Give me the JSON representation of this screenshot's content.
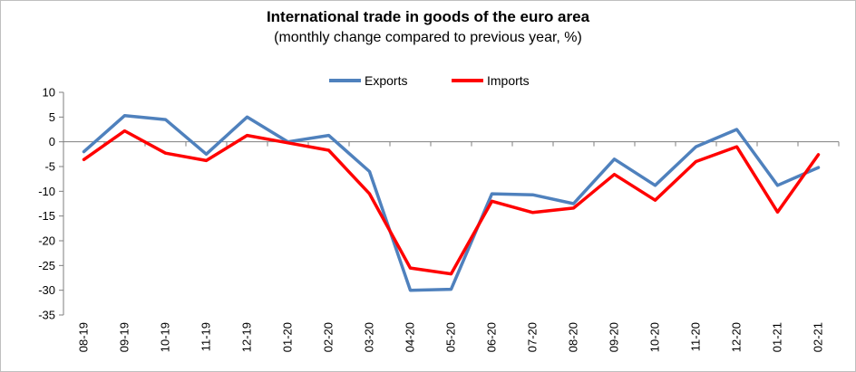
{
  "chart_data": {
    "type": "line",
    "title": "International trade in goods of the euro area",
    "subtitle": "(monthly change compared to previous year, %)",
    "xlabel": "",
    "ylabel": "",
    "categories": [
      "08-19",
      "09-19",
      "10-19",
      "11-19",
      "12-19",
      "01-20",
      "02-20",
      "03-20",
      "04-20",
      "05-20",
      "06-20",
      "07-20",
      "08-20",
      "09-20",
      "10-20",
      "11-20",
      "12-20",
      "01-21",
      "02-21"
    ],
    "ylim": [
      -35,
      10
    ],
    "yticks": [
      "10",
      "5",
      "0",
      "-5",
      "-10",
      "-15",
      "-20",
      "-25",
      "-30",
      "-35"
    ],
    "legend_position": "top-center",
    "grid": false,
    "series": [
      {
        "name": "Exports",
        "color": "#4f81bd",
        "values": [
          -2.0,
          5.3,
          4.5,
          -2.5,
          5.0,
          0.0,
          1.3,
          -6.0,
          -30.0,
          -29.8,
          -10.5,
          -10.7,
          -12.5,
          -3.5,
          -8.8,
          -1.0,
          2.5,
          -8.8,
          -5.2
        ]
      },
      {
        "name": "Imports",
        "color": "#ff0000",
        "values": [
          -3.6,
          2.2,
          -2.3,
          -3.8,
          1.3,
          -0.2,
          -1.7,
          -10.5,
          -25.5,
          -26.7,
          -12.0,
          -14.3,
          -13.4,
          -6.6,
          -11.8,
          -4.0,
          -1.0,
          -14.2,
          -2.6
        ]
      }
    ]
  }
}
